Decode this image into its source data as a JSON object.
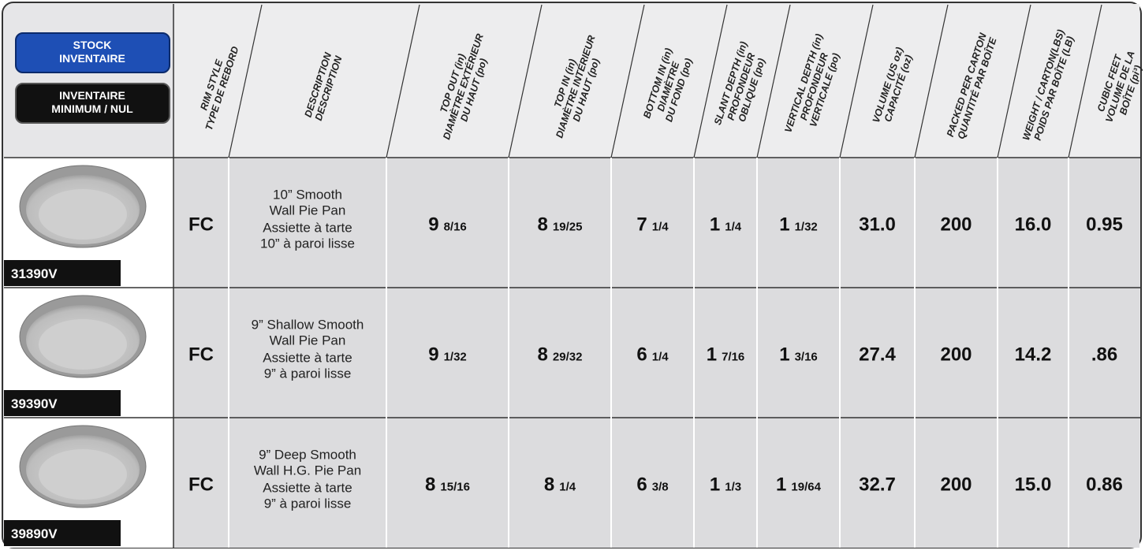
{
  "legend": {
    "stock": [
      "STOCK",
      "INVENTAIRE"
    ],
    "minimum": [
      "INVENTAIRE",
      "MINIMUM / NUL"
    ]
  },
  "header": {
    "columns": [
      [
        "RIM STYLE",
        "TYPE DE REBORD"
      ],
      [
        "DESCRIPTION",
        "DESCRIPTION"
      ],
      [
        "TOP OUT (in)",
        "DIAMÈTRE EXTÉRIEUR",
        "DU HAUT (po)"
      ],
      [
        "TOP IN (in)",
        "DIAMÈTRE INTÉRIEUR",
        "DU HAUT (po)"
      ],
      [
        "BOTTOM IN (in)",
        "DIAMÈTRE",
        "DU FOND (po)"
      ],
      [
        "SLANT DEPTH (in)",
        "PROFONDEUR",
        "OBLIQUE (po)"
      ],
      [
        "VERTICAL DEPTH (in)",
        "PROFONDEUR",
        "VERTICALE (po)"
      ],
      [
        "VOLUME (US oz)",
        "CAPACITÉ (oz)"
      ],
      [
        "PACKED PER CARTON",
        "QUANTITÉ PAR BOÎTE"
      ],
      [
        "WEIGHT / CARTON(LBS)",
        "POIDS PAR BOÎTE (LB)"
      ],
      [
        "CUBIC FEET",
        "VOLUME DE LA",
        "BOÎTE (pi³)"
      ]
    ]
  },
  "rows": [
    {
      "code": "31390V",
      "rim": "FC",
      "description": [
        "10” Smooth",
        "Wall Pie Pan",
        "Assiette à tarte",
        "10” à paroi lisse"
      ],
      "fractions": [
        {
          "whole": "9",
          "frac": "8/16"
        },
        {
          "whole": "8",
          "frac": "19/25"
        },
        {
          "whole": "7",
          "frac": "1/4"
        },
        {
          "whole": "1",
          "frac": "1/4"
        },
        {
          "whole": "1",
          "frac": "1/32"
        }
      ],
      "numbers": [
        "31.0",
        "200",
        "16.0",
        "0.95"
      ]
    },
    {
      "code": "39390V",
      "rim": "FC",
      "description": [
        "9” Shallow Smooth",
        "Wall Pie Pan",
        "Assiette à tarte",
        "9” à paroi lisse"
      ],
      "fractions": [
        {
          "whole": "9",
          "frac": "1/32"
        },
        {
          "whole": "8",
          "frac": "29/32"
        },
        {
          "whole": "6",
          "frac": "1/4"
        },
        {
          "whole": "1",
          "frac": "7/16"
        },
        {
          "whole": "1",
          "frac": "3/16"
        }
      ],
      "numbers": [
        "27.4",
        "200",
        "14.2",
        ".86"
      ]
    },
    {
      "code": "39890V",
      "rim": "FC",
      "description": [
        "9” Deep Smooth",
        "Wall H.G. Pie Pan",
        "Assiette à tarte",
        "9” à paroi lisse"
      ],
      "fractions": [
        {
          "whole": "8",
          "frac": "15/16"
        },
        {
          "whole": "8",
          "frac": "1/4"
        },
        {
          "whole": "6",
          "frac": "3/8"
        },
        {
          "whole": "1",
          "frac": "1/3"
        },
        {
          "whole": "1",
          "frac": "19/64"
        }
      ],
      "numbers": [
        "32.7",
        "200",
        "15.0",
        "0.86"
      ]
    }
  ]
}
